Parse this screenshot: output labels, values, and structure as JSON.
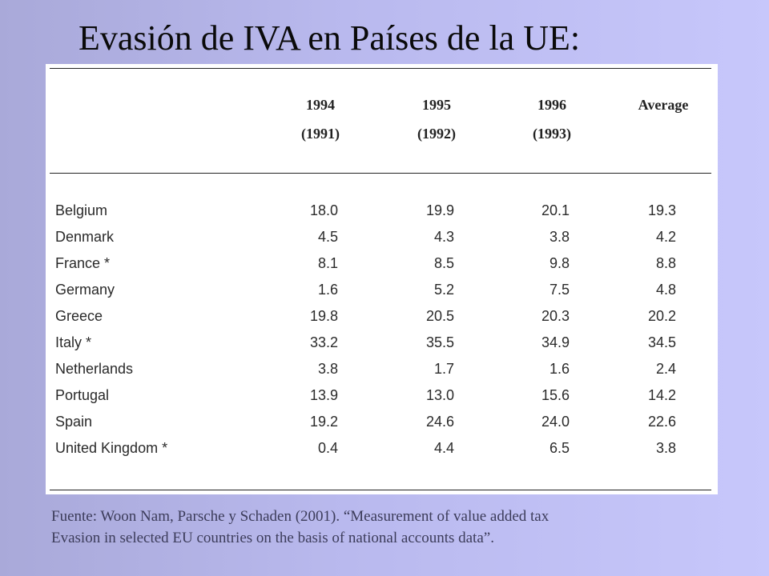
{
  "title": "Evasión de IVA en Países de la UE:",
  "table": {
    "headers": [
      {
        "line1": "1994",
        "line2": "(1991)"
      },
      {
        "line1": "1995",
        "line2": "(1992)"
      },
      {
        "line1": "1996",
        "line2": "(1993)"
      },
      {
        "line1": "Average",
        "line2": ""
      }
    ],
    "rows": [
      {
        "country": "Belgium",
        "values": [
          "18.0",
          "19.9",
          "20.1",
          "19.3"
        ]
      },
      {
        "country": "Denmark",
        "values": [
          "4.5",
          "4.3",
          "3.8",
          "4.2"
        ]
      },
      {
        "country": "France *",
        "values": [
          "8.1",
          "8.5",
          "9.8",
          "8.8"
        ]
      },
      {
        "country": "Germany",
        "values": [
          "1.6",
          "5.2",
          "7.5",
          "4.8"
        ]
      },
      {
        "country": "Greece",
        "values": [
          "19.8",
          "20.5",
          "20.3",
          "20.2"
        ]
      },
      {
        "country": "Italy *",
        "values": [
          "33.2",
          "35.5",
          "34.9",
          "34.5"
        ]
      },
      {
        "country": "Netherlands",
        "values": [
          "3.8",
          "1.7",
          "1.6",
          "2.4"
        ]
      },
      {
        "country": "Portugal",
        "values": [
          "13.9",
          "13.0",
          "15.6",
          "14.2"
        ]
      },
      {
        "country": "Spain",
        "values": [
          "19.2",
          "24.6",
          "24.0",
          "22.6"
        ]
      },
      {
        "country": "United Kingdom *",
        "values": [
          "0.4",
          "4.4",
          "6.5",
          "3.8"
        ]
      }
    ]
  },
  "footnote": {
    "line1": "Fuente: Woon Nam, Parsche y Schaden (2001). “Measurement of value added tax",
    "line2": "Evasion in selected EU countries on the basis of national accounts data”."
  }
}
